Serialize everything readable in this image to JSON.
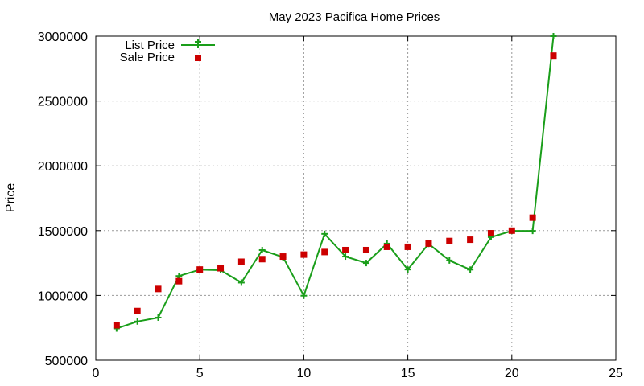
{
  "chart_data": {
    "type": "line",
    "title": "May 2023 Pacifica Home Prices",
    "xlabel": "",
    "ylabel": "Price",
    "xlim": [
      0,
      25
    ],
    "ylim": [
      500000,
      3000000
    ],
    "x_ticks": [
      0,
      5,
      10,
      15,
      20,
      25
    ],
    "y_ticks": [
      500000,
      1000000,
      1500000,
      2000000,
      2500000,
      3000000
    ],
    "x_tick_labels": [
      "0",
      "5",
      "10",
      "15",
      "20",
      "25"
    ],
    "y_tick_labels": [
      "500000",
      "1000000",
      "1500000",
      "2000000",
      "2500000",
      "3000000"
    ],
    "grid": true,
    "legend_position": "top-left",
    "series": [
      {
        "name": "List Price",
        "style": "line-with-plus-markers",
        "color": "#1a9e1a",
        "x": [
          1,
          2,
          3,
          4,
          5,
          6,
          7,
          8,
          9,
          10,
          11,
          12,
          13,
          14,
          15,
          16,
          17,
          18,
          19,
          20,
          21,
          22
        ],
        "y": [
          745000,
          799000,
          829000,
          1150000,
          1199000,
          1195000,
          1099000,
          1350000,
          1295000,
          998000,
          1475000,
          1300000,
          1250000,
          1400000,
          1200000,
          1398000,
          1270000,
          1199000,
          1450000,
          1498000,
          1498000,
          3000000
        ]
      },
      {
        "name": "Sale Price",
        "style": "square-markers",
        "color": "#cc0000",
        "x": [
          1,
          2,
          3,
          4,
          5,
          6,
          7,
          8,
          9,
          10,
          11,
          12,
          13,
          14,
          15,
          16,
          17,
          18,
          19,
          20,
          21,
          22
        ],
        "y": [
          770000,
          880000,
          1050000,
          1110000,
          1200000,
          1210000,
          1260000,
          1280000,
          1300000,
          1315000,
          1335000,
          1350000,
          1350000,
          1375000,
          1375000,
          1400000,
          1420000,
          1430000,
          1480000,
          1500000,
          1600000,
          2850000
        ]
      }
    ]
  }
}
